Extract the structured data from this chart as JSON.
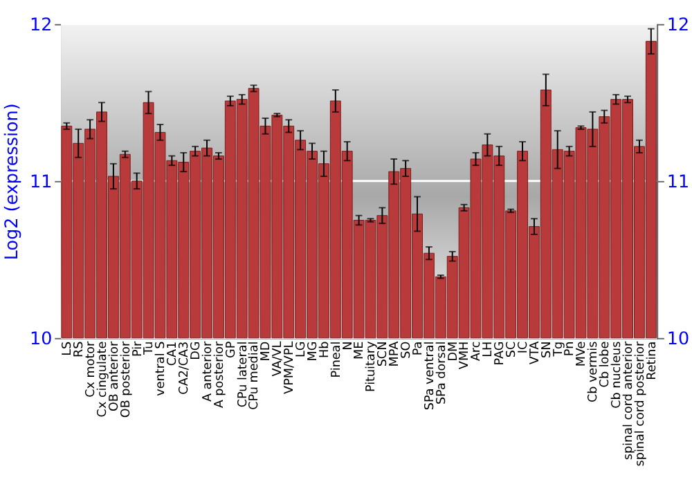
{
  "chart_data": {
    "type": "bar",
    "ylabel": "Log2 (expression)",
    "categories": [
      "LS",
      "RS",
      "Cx motor",
      "Cx cingulate",
      "OB anterior",
      "OB posterior",
      "Pir",
      "Tu",
      "ventral S",
      "CA1",
      "CA2/CA3",
      "DG",
      "A anterior",
      "A posterior",
      "GP",
      "CPu lateral",
      "CPu medial",
      "MD",
      "VA/VL",
      "VPM/VPL",
      "LG",
      "MG",
      "Hb",
      "Pineal",
      "N",
      "ME",
      "Pituitary",
      "SCN",
      "MPA",
      "SO",
      "Pa",
      "SPa ventral",
      "SPa dorsal",
      "DM",
      "VMH",
      "Arc",
      "LH",
      "PAG",
      "SC",
      "IC",
      "VTA",
      "SN",
      "Tg",
      "Pn",
      "MVe",
      "Cb vermis",
      "Cb lobe",
      "Cb nucleus",
      "spinal cord anterior",
      "spinal cord posterior",
      "Retina"
    ],
    "values": [
      11.35,
      11.24,
      11.33,
      11.44,
      11.03,
      11.17,
      11.0,
      11.5,
      11.31,
      11.13,
      11.12,
      11.19,
      11.21,
      11.16,
      11.51,
      11.52,
      11.59,
      11.35,
      11.42,
      11.35,
      11.26,
      11.19,
      11.11,
      11.51,
      11.19,
      10.75,
      10.75,
      10.78,
      11.06,
      11.08,
      10.79,
      10.54,
      10.39,
      10.52,
      10.83,
      11.14,
      11.23,
      11.16,
      10.81,
      11.19,
      10.71,
      11.58,
      11.2,
      11.19,
      11.34,
      11.33,
      11.41,
      11.52,
      11.52,
      11.22,
      11.89
    ],
    "errors": [
      0.02,
      0.09,
      0.06,
      0.06,
      0.08,
      0.02,
      0.05,
      0.07,
      0.05,
      0.03,
      0.06,
      0.03,
      0.05,
      0.02,
      0.03,
      0.03,
      0.02,
      0.05,
      0.01,
      0.04,
      0.06,
      0.05,
      0.08,
      0.07,
      0.06,
      0.03,
      0.01,
      0.05,
      0.08,
      0.05,
      0.11,
      0.04,
      0.01,
      0.03,
      0.02,
      0.04,
      0.07,
      0.06,
      0.01,
      0.06,
      0.05,
      0.1,
      0.12,
      0.03,
      0.01,
      0.11,
      0.04,
      0.03,
      0.02,
      0.04,
      0.08
    ],
    "color": "#b83a3a",
    "ylim": [
      10,
      12
    ],
    "yticks": [
      10,
      11,
      12
    ],
    "y2lim": [
      10,
      12
    ],
    "y2ticks": [
      10,
      11,
      12
    ],
    "grid": "y"
  }
}
